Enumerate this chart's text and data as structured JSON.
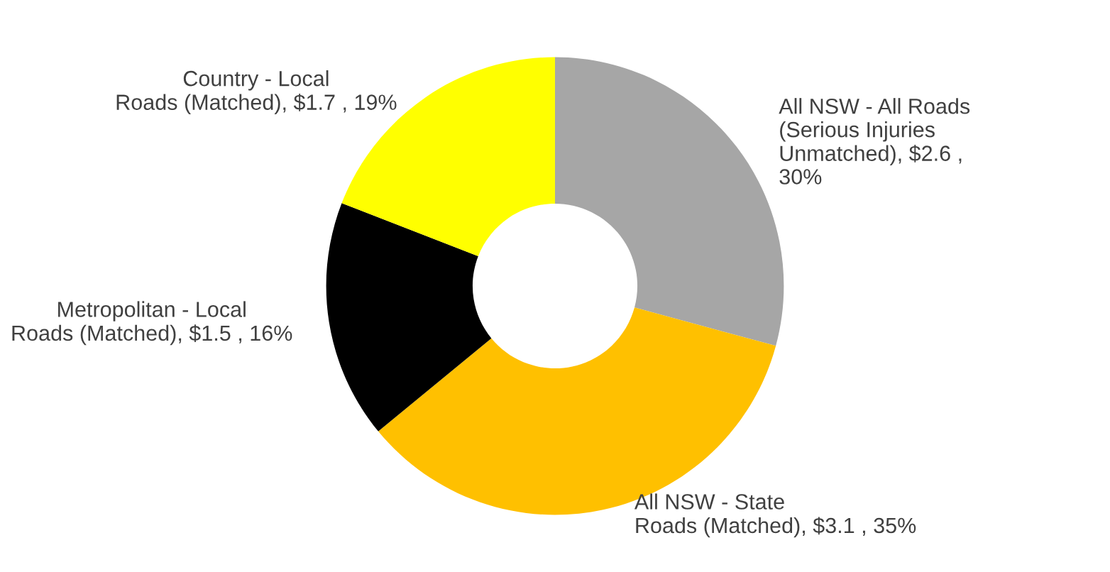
{
  "chart_data": {
    "type": "donut",
    "categories": [
      "All NSW - All Roads\n(Serious Injuries\nUnmatched)",
      "All NSW - State\nRoads (Matched)",
      "Metropolitan - Local\nRoads (Matched)",
      "Country - Local\nRoads (Matched)"
    ],
    "values": [
      2.6,
      3.1,
      1.5,
      1.7
    ],
    "value_labels": [
      "$2.6 ,\n30%",
      "$3.1 , 35%",
      "$1.5 , 16%",
      "$1.7 , 19%"
    ],
    "colors": [
      "#a6a6a6",
      "#ffc000",
      "#000000",
      "#ffff00"
    ],
    "legend": false
  }
}
